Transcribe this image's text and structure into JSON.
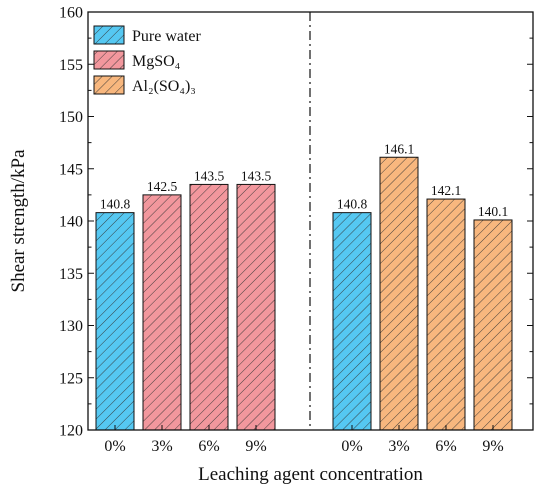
{
  "chart_data": {
    "type": "bar",
    "xlabel": "Leaching agent concentration",
    "ylabel": "Shear strength/kPa",
    "ylim": [
      120,
      160
    ],
    "yticks": [
      120,
      125,
      130,
      135,
      140,
      145,
      150,
      155,
      160
    ],
    "grid": false,
    "legend_position": "top-left",
    "series": [
      {
        "name": "Pure water",
        "color": "#55c8f2",
        "pattern": "hatched"
      },
      {
        "name": "MgSO₄",
        "color": "#f2979d",
        "pattern": "hatched"
      },
      {
        "name": "Al₂(SO₄)₃",
        "color": "#f8b77e",
        "pattern": "hatched"
      }
    ],
    "groups": [
      {
        "bars": [
          {
            "category": "0%",
            "series": "Pure water",
            "value": 140.8,
            "label": "140.8"
          },
          {
            "category": "3%",
            "series": "MgSO₄",
            "value": 142.5,
            "label": "142.5"
          },
          {
            "category": "6%",
            "series": "MgSO₄",
            "value": 143.5,
            "label": "143.5"
          },
          {
            "category": "9%",
            "series": "MgSO₄",
            "value": 143.5,
            "label": "143.5"
          }
        ]
      },
      {
        "bars": [
          {
            "category": "0%",
            "series": "Pure water",
            "value": 140.8,
            "label": "140.8"
          },
          {
            "category": "3%",
            "series": "Al₂(SO₄)₃",
            "value": 146.1,
            "label": "146.1"
          },
          {
            "category": "6%",
            "series": "Al₂(SO₄)₃",
            "value": 142.1,
            "label": "142.1"
          },
          {
            "category": "9%",
            "series": "Al₂(SO₄)₃",
            "value": 140.1,
            "label": "140.1"
          }
        ]
      }
    ]
  }
}
